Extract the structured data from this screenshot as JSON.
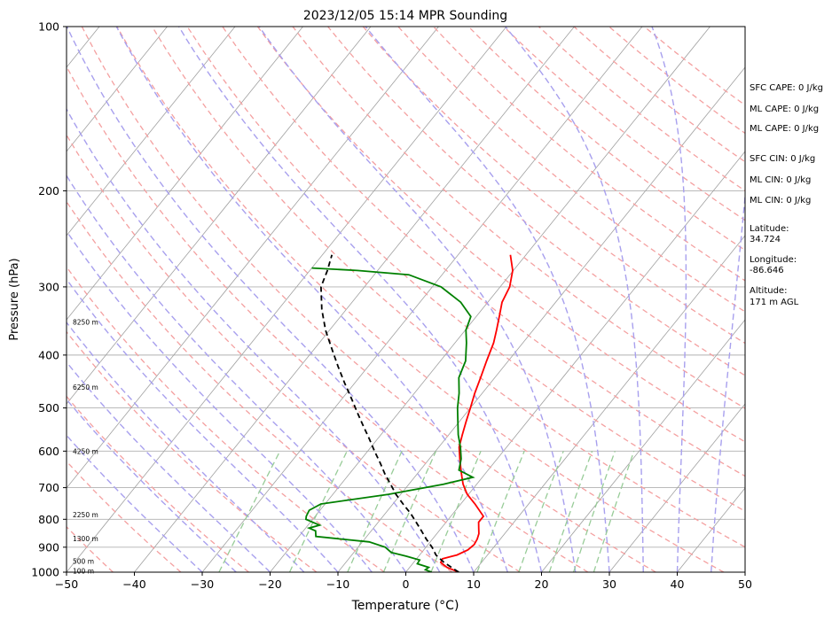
{
  "chart_data": {
    "type": "line",
    "subtype": "skew-t log-p diagram",
    "title": "2023/12/05 15:14 MPR Sounding",
    "xlabel": "Temperature (°C)",
    "ylabel": "Pressure (hPa)",
    "xlim": [
      -50,
      50
    ],
    "ylim": [
      1000,
      100
    ],
    "y_scale": "log",
    "x_ticks": [
      -50,
      -40,
      -30,
      -20,
      -10,
      0,
      10,
      20,
      30,
      40,
      50
    ],
    "x_tick_labels": [
      "−50",
      "−40",
      "−30",
      "−20",
      "−10",
      "0",
      "10",
      "20",
      "30",
      "40",
      "50"
    ],
    "y_ticks": [
      1000,
      900,
      800,
      700,
      600,
      500,
      400,
      300,
      200,
      100
    ],
    "y_tick_labels": [
      "1000",
      "900",
      "800",
      "700",
      "600",
      "500",
      "400",
      "300",
      "200",
      "100"
    ],
    "grid": true,
    "colors": {
      "temperature": "#ff0000",
      "dewpoint": "#008000",
      "parcel": "#000000",
      "dry_adiabats": "#f4a0a0",
      "moist_adiabats": "#a8a0ee",
      "mixing_ratio": "#98cc98",
      "isotherms": "#a0a0a0"
    },
    "series": [
      {
        "key": "temperature",
        "pressure": [
          1000,
          980,
          960,
          945,
          930,
          910,
          890,
          870,
          850,
          830,
          810,
          790,
          750,
          720,
          690,
          670,
          650,
          620,
          590,
          560,
          530,
          500,
          470,
          440,
          410,
          380,
          360,
          340,
          320,
          300,
          280,
          262
        ],
        "temp": [
          7.8,
          5.5,
          4.0,
          3.8,
          5.5,
          6.5,
          6.8,
          6.6,
          6.2,
          5.5,
          4.8,
          4.8,
          2.1,
          -0.2,
          -2.0,
          -3.0,
          -4.0,
          -5.5,
          -7.0,
          -8.0,
          -9.0,
          -10.0,
          -11.1,
          -12.1,
          -13.2,
          -14.3,
          -15.4,
          -16.6,
          -17.9,
          -18.6,
          -20.1,
          -22.3
        ]
      },
      {
        "key": "dewpoint",
        "pressure": [
          1000,
          990,
          980,
          965,
          950,
          935,
          920,
          900,
          880,
          860,
          840,
          830,
          820,
          800,
          790,
          770,
          750,
          720,
          690,
          670,
          650,
          620,
          590,
          560,
          530,
          500,
          470,
          440,
          410,
          380,
          360,
          340,
          320,
          300,
          285,
          280,
          277
        ],
        "temp": [
          3.8,
          2.6,
          2.8,
          0.7,
          0.6,
          -1.8,
          -4.5,
          -6.0,
          -9.0,
          -17.5,
          -18.2,
          -19.5,
          -18.3,
          -21.0,
          -21.3,
          -21.6,
          -20.6,
          -11.8,
          -4.9,
          -1.4,
          -4.3,
          -5.3,
          -6.8,
          -8.6,
          -10.2,
          -11.9,
          -13.4,
          -15.3,
          -16.3,
          -18.3,
          -19.9,
          -20.8,
          -24.0,
          -28.7,
          -34.9,
          -43.0,
          -50.0
        ]
      },
      {
        "key": "parcel",
        "pressure": [
          1000,
          960,
          930,
          900,
          870,
          840,
          810,
          780,
          750,
          720,
          690,
          660,
          630,
          600,
          570,
          540,
          510,
          480,
          450,
          420,
          390,
          360,
          330,
          300,
          280,
          262
        ],
        "temp": [
          7.8,
          4.5,
          2.4,
          0.9,
          -0.9,
          -2.6,
          -4.4,
          -6.3,
          -8.5,
          -10.7,
          -12.7,
          -14.8,
          -16.8,
          -19.0,
          -21.2,
          -23.6,
          -26.1,
          -28.7,
          -31.5,
          -34.4,
          -37.4,
          -40.6,
          -43.6,
          -46.4,
          -47.4,
          -48.6
        ]
      }
    ],
    "height_labels": [
      {
        "pressure": 995,
        "text": "100 m"
      },
      {
        "pressure": 955,
        "text": "500 m"
      },
      {
        "pressure": 868,
        "text": "1300 m"
      },
      {
        "pressure": 785,
        "text": "2250 m"
      },
      {
        "pressure": 600,
        "text": "4250 m"
      },
      {
        "pressure": 458,
        "text": "6250 m"
      },
      {
        "pressure": 348,
        "text": "8250 m"
      }
    ],
    "annotations": [
      {
        "key": "sfc_cape",
        "text": "SFC CAPE: 0 J/kg"
      },
      {
        "key": "ml_cape_1",
        "text": "ML CAPE: 0 J/kg"
      },
      {
        "key": "ml_cape_2",
        "text": "ML CAPE: 0 J/kg"
      },
      {
        "key": "sfc_cin",
        "text": "SFC CIN: 0 J/kg"
      },
      {
        "key": "ml_cin_1",
        "text": "ML CIN: 0 J/kg"
      },
      {
        "key": "ml_cin_2",
        "text": "ML CIN: 0 J/kg"
      },
      {
        "key": "latitude",
        "label": "Latitude:",
        "value": "34.724"
      },
      {
        "key": "longitude",
        "label": "Longitude:",
        "value": "-86.646"
      },
      {
        "key": "altitude",
        "label": "Altitude:",
        "value": "171 m AGL"
      }
    ]
  }
}
